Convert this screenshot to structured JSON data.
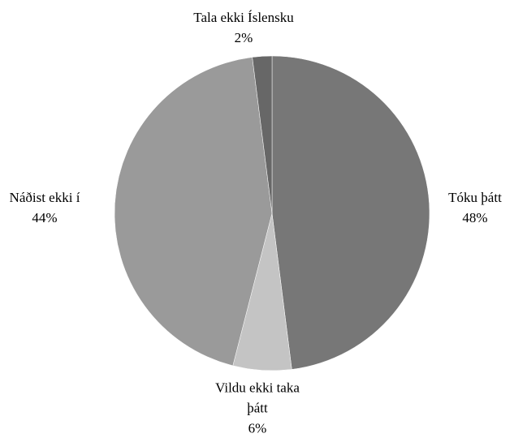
{
  "chart_data": {
    "type": "pie",
    "categories": [
      "Tóku þátt",
      "Vildu ekki taka þátt",
      "Náðist ekki í",
      "Tala ekki Íslensku"
    ],
    "values": [
      48,
      6,
      44,
      2
    ],
    "value_labels": [
      "48%",
      "6%",
      "44%",
      "2%"
    ],
    "colors": [
      "#777777",
      "#c4c4c4",
      "#9a9a9a",
      "#676767"
    ]
  }
}
